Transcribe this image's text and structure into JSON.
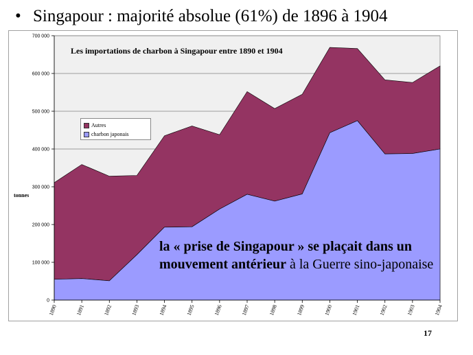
{
  "slide": {
    "bullet": "•",
    "title": "Singapour : majorité absolue (61%) de 1896 à 1904",
    "annotation_bold1": "la « prise de Singapour » se plaçait dans un mouvement antérieur",
    "annotation_normal": " à la Guerre sino-japonaise",
    "page_number": "17"
  },
  "colors": {
    "autres": "#943462",
    "charbon_japonais": "#9b9bff",
    "plot_bg": "#f0f0f0",
    "gridline": "#7f7f7f"
  },
  "chart_data": {
    "type": "area",
    "stacked": true,
    "title": "Les importations  de charbon à Singapour  entre  1890 et 1904",
    "ylabel": "tonnes",
    "xlabel": "",
    "ylim": [
      0,
      700000
    ],
    "yticks": [
      "0",
      "100 000",
      "200 000",
      "300 000",
      "400 000",
      "500 000",
      "600 000",
      "700 000"
    ],
    "grid": true,
    "legend_position": "upper-left",
    "x": [
      "1890",
      "1891",
      "1892",
      "1893",
      "1894",
      "1895",
      "1896",
      "1897",
      "1898",
      "1899",
      "1900",
      "1901",
      "1902",
      "1903",
      "1904"
    ],
    "series": [
      {
        "name": "charbon japonais",
        "values": [
          55000,
          57000,
          51000,
          120000,
          193000,
          194000,
          241000,
          280000,
          262000,
          281000,
          443000,
          475000,
          387000,
          388000,
          400000
        ]
      },
      {
        "name": "Autres",
        "values": [
          256000,
          302000,
          277000,
          210000,
          242000,
          267000,
          197000,
          272000,
          245000,
          264000,
          226000,
          191000,
          196000,
          188000,
          220000
        ]
      }
    ],
    "legend": [
      "Autres",
      "charbon japonais"
    ]
  }
}
